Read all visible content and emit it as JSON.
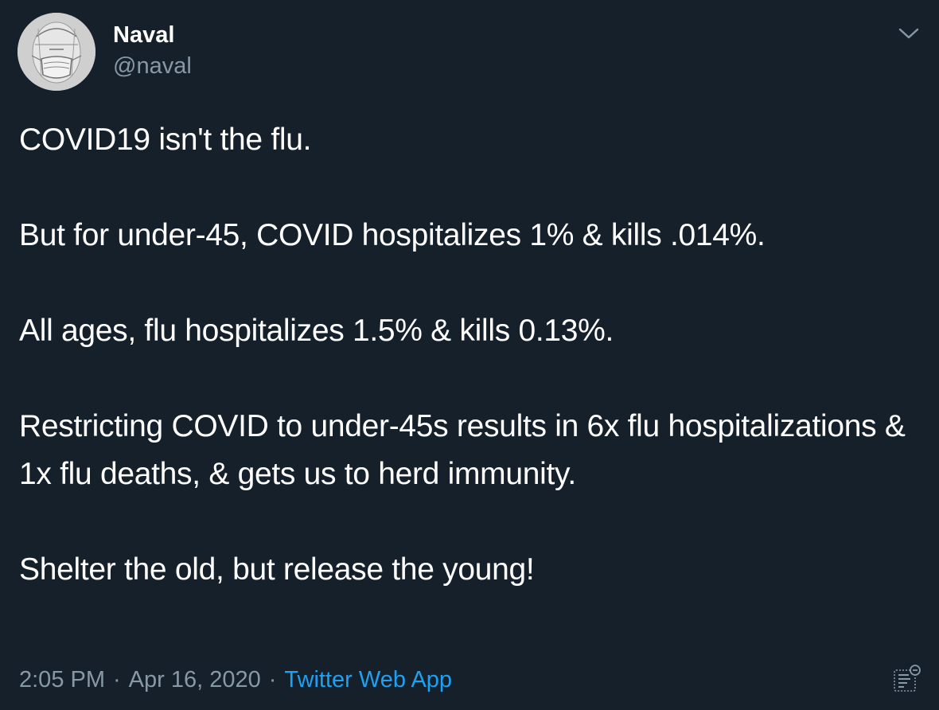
{
  "author": {
    "name": "Naval",
    "handle": "@naval",
    "avatar_icon": "masked-portrait-avatar"
  },
  "tweet": {
    "paragraphs": [
      "COVID19 isn't the flu.",
      "But for under-45, COVID hospitalizes 1% & kills .014%.",
      "All ages, flu hospitalizes 1.5% & kills 0.13%.",
      "Restricting COVID to under-45s results in 6x flu hospitalizations & 1x flu deaths, & gets us to herd immunity.",
      "Shelter the old, but release the young!"
    ]
  },
  "meta": {
    "time": "2:05 PM",
    "separator": "·",
    "date": "Apr 16, 2020",
    "source": "Twitter Web App"
  },
  "icons": {
    "menu": "chevron-down-icon",
    "analytics": "analytics-icon"
  },
  "colors": {
    "background": "#15202b",
    "text": "#ffffff",
    "secondary": "#8899a6",
    "link": "#1da1f2"
  }
}
